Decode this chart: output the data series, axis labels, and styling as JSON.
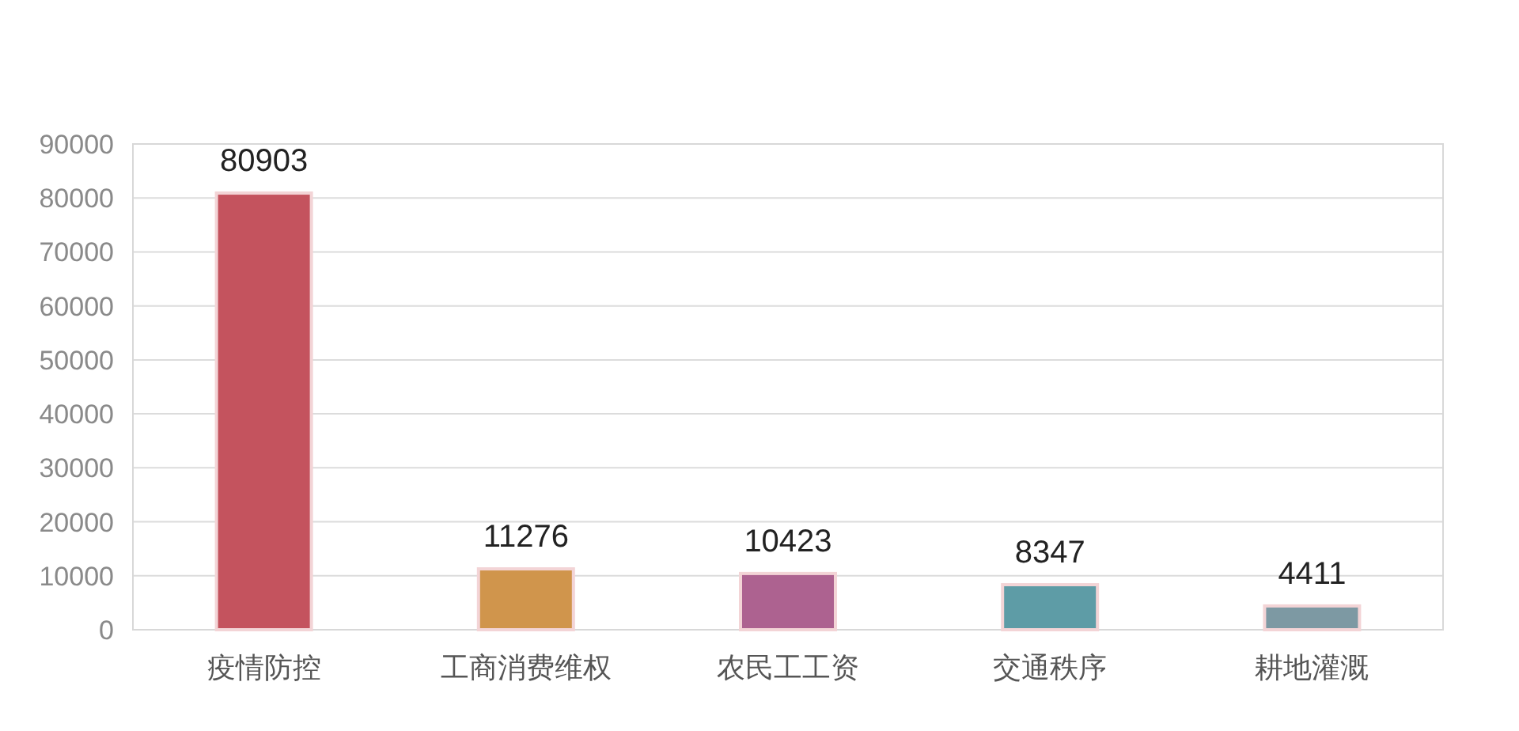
{
  "chart_data": {
    "type": "bar",
    "categories": [
      "疫情防控",
      "工商消费维权",
      "农民工工资",
      "交通秩序",
      "耕地灌溉"
    ],
    "values": [
      80903,
      11276,
      10423,
      8347,
      4411
    ],
    "colors": [
      "#c4535e",
      "#d0954c",
      "#ad6290",
      "#5e9ca6",
      "#7d99a3"
    ],
    "ylim": [
      0,
      90000
    ],
    "yticks": [
      0,
      10000,
      20000,
      30000,
      40000,
      50000,
      60000,
      70000,
      80000,
      90000
    ],
    "grid": "y",
    "data_labels": true
  }
}
